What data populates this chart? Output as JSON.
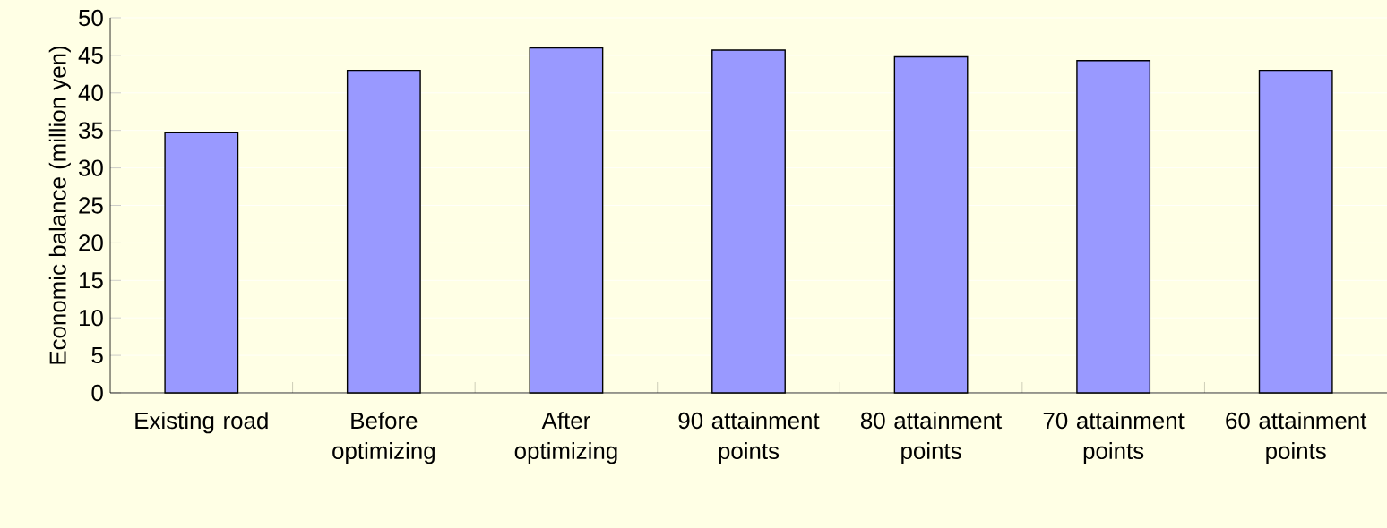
{
  "chart_data": {
    "type": "bar",
    "ylabel": "Economic balance (million yen)",
    "categories": [
      "Existing road",
      "Before optimizing",
      "After optimizing",
      "90 attainment points",
      "80 attainment points",
      "70 attainment points",
      "60 attainment points"
    ],
    "values": [
      34.7,
      43.0,
      46.0,
      45.7,
      44.8,
      44.3,
      43.0
    ],
    "color": "#9999ff",
    "ylim": [
      0,
      50
    ],
    "yticks": [
      0,
      5,
      10,
      15,
      20,
      25,
      30,
      35,
      40,
      45,
      50
    ],
    "grid": "y"
  }
}
